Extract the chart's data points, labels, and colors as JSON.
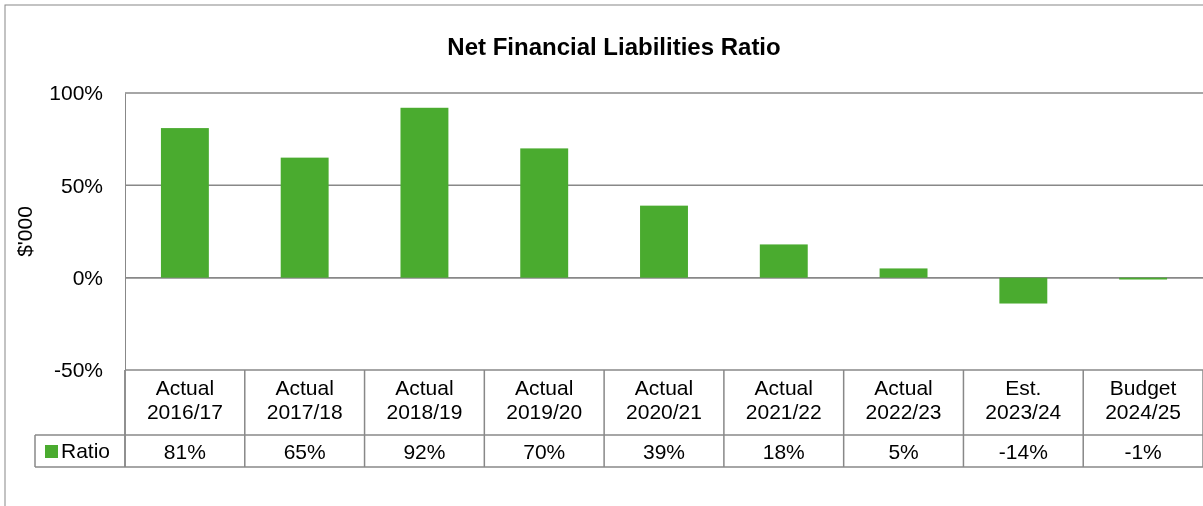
{
  "chart_data": {
    "type": "bar",
    "title": "Net Financial Liabilities Ratio",
    "ylabel": "$'000",
    "categories": [
      "Actual\n2016/17",
      "Actual\n2017/18",
      "Actual\n2018/19",
      "Actual\n2019/20",
      "Actual\n2020/21",
      "Actual\n2021/22",
      "Actual\n2022/23",
      "Est.\n2023/24",
      "Budget\n2024/25"
    ],
    "series": [
      {
        "name": "Ratio",
        "color": "#4aab2f",
        "values": [
          81,
          65,
          92,
          70,
          39,
          18,
          5,
          -14,
          -1
        ],
        "value_labels": [
          "81%",
          "65%",
          "92%",
          "70%",
          "39%",
          "18%",
          "5%",
          "-14%",
          "-1%"
        ]
      }
    ],
    "ylim": [
      -50,
      100
    ],
    "yticks": [
      {
        "value": -50,
        "label": "-50%"
      },
      {
        "value": 0,
        "label": "0%"
      },
      {
        "value": 50,
        "label": "50%"
      },
      {
        "value": 100,
        "label": "100%"
      }
    ],
    "grid": "y",
    "legend": "bottom"
  }
}
